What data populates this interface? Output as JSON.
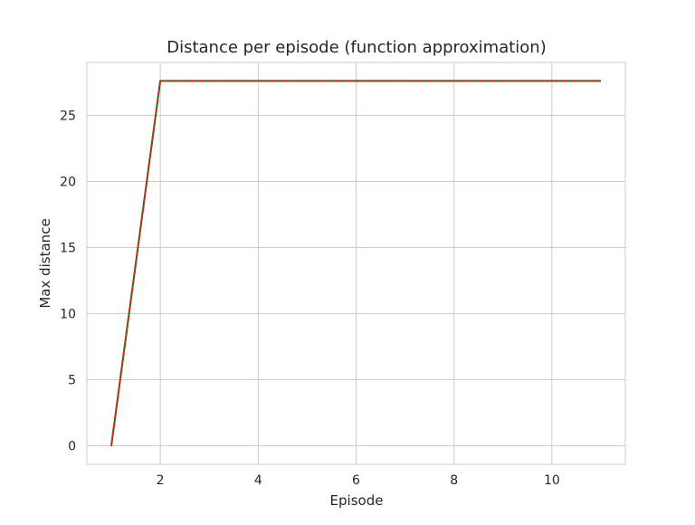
{
  "chart_data": {
    "type": "line",
    "title": "Distance per episode (function approximation)",
    "xlabel": "Episode",
    "ylabel": "Max distance",
    "xlim": [
      0.5,
      11.5
    ],
    "ylim": [
      -1.4,
      29.0
    ],
    "xticks": [
      2,
      4,
      6,
      8,
      10
    ],
    "yticks": [
      0,
      5,
      10,
      15,
      20,
      25
    ],
    "grid": true,
    "legend": "none",
    "series": [
      {
        "x": [
          1,
          2,
          3,
          4,
          5,
          6,
          7,
          8,
          9,
          10,
          11
        ],
        "y": [
          0,
          27.6,
          27.6,
          27.6,
          27.6,
          27.6,
          27.6,
          27.6,
          27.6,
          27.6,
          27.6
        ],
        "color": "#008000",
        "style": "solid"
      },
      {
        "x": [
          1,
          2,
          3,
          4,
          5,
          6,
          7,
          8,
          9,
          10,
          11
        ],
        "y": [
          0,
          27.6,
          27.6,
          27.6,
          27.6,
          27.6,
          27.6,
          27.6,
          27.6,
          27.6,
          27.6
        ],
        "color": "#d62728",
        "style": "dashed"
      }
    ]
  },
  "colors": {
    "grid": "#cccccc",
    "frame": "#cccccc",
    "text": "#262626"
  }
}
